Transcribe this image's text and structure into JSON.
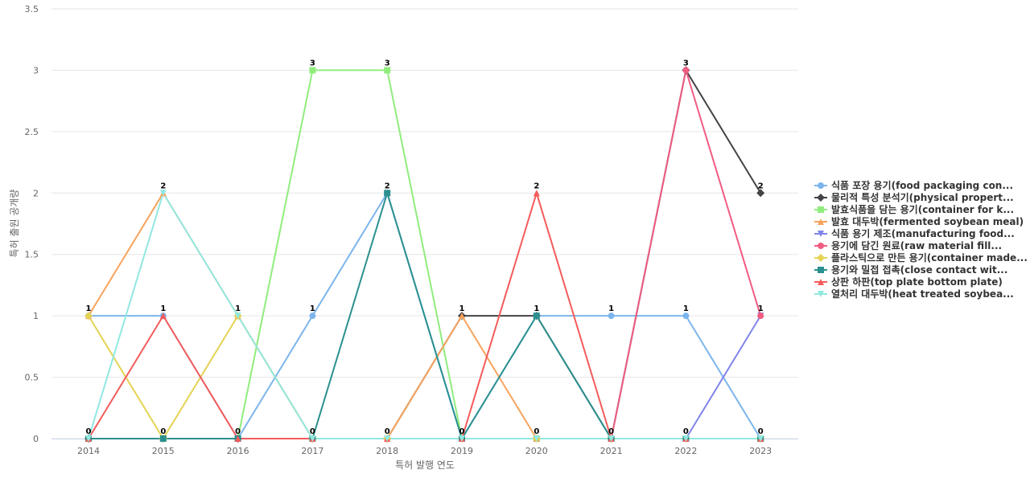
{
  "chart_data": {
    "type": "line",
    "title": "",
    "xlabel": "특허 발행 연도",
    "ylabel": "특허 출원 공개량",
    "x": [
      "2014",
      "2015",
      "2016",
      "2017",
      "2018",
      "2019",
      "2020",
      "2021",
      "2022",
      "2023"
    ],
    "yticks": [
      "0",
      "0.5",
      "1",
      "1.5",
      "2",
      "2.5",
      "3",
      "3.5"
    ],
    "ylim": [
      0,
      3.5
    ],
    "grid": true,
    "legend_position": "right",
    "series": [
      {
        "name": "식품 포장 용기(food packaging con...",
        "color": "#7cb5ec",
        "marker": "circle",
        "values": [
          1,
          1,
          0,
          1,
          2,
          0,
          1,
          1,
          1,
          0
        ]
      },
      {
        "name": "물리적 특성 분석기(physical propert...",
        "color": "#434348",
        "marker": "diamond",
        "values": [
          0,
          0,
          0,
          0,
          0,
          1,
          1,
          0,
          3,
          2
        ]
      },
      {
        "name": "발효식품을 담는 용기(container for k...",
        "color": "#90ed7d",
        "marker": "square",
        "values": [
          0,
          0,
          0,
          3,
          3,
          0,
          0,
          0,
          0,
          0
        ]
      },
      {
        "name": "발효 대두박(fermented soybean meal)",
        "color": "#f7a35c",
        "marker": "triangle",
        "values": [
          1,
          2,
          1,
          0,
          0,
          1,
          0,
          0,
          0,
          0
        ]
      },
      {
        "name": "식품 용기 제조(manufacturing food...",
        "color": "#8085e9",
        "marker": "triangle-down",
        "values": [
          0,
          0,
          0,
          0,
          0,
          0,
          0,
          0,
          0,
          1
        ]
      },
      {
        "name": "용기에 담긴 원료(raw material fill...",
        "color": "#f15c80",
        "marker": "circle",
        "values": [
          0,
          0,
          0,
          0,
          0,
          0,
          0,
          0,
          3,
          1
        ]
      },
      {
        "name": "플라스틱으로 만든 용기(container made...",
        "color": "#e4d354",
        "marker": "diamond",
        "values": [
          1,
          0,
          1,
          0,
          0,
          0,
          0,
          0,
          0,
          0
        ]
      },
      {
        "name": "용기와 밀접 접촉(close contact wit...",
        "color": "#2b908f",
        "marker": "square",
        "values": [
          0,
          0,
          0,
          0,
          2,
          0,
          1,
          0,
          0,
          0
        ]
      },
      {
        "name": "상판 하판(top plate bottom plate)",
        "color": "#f45b5b",
        "marker": "triangle",
        "values": [
          0,
          1,
          0,
          0,
          0,
          0,
          2,
          0,
          0,
          0
        ]
      },
      {
        "name": "열처리 대두박(heat treated soybea...",
        "color": "#91e8e1",
        "marker": "triangle-down",
        "values": [
          0,
          2,
          1,
          0,
          0,
          0,
          0,
          0,
          0,
          0
        ]
      }
    ],
    "data_labels": [
      {
        "x": "2014",
        "top": "1",
        "bottom": "0"
      },
      {
        "x": "2015",
        "top": "2",
        "mid": "1",
        "bottom": "0"
      },
      {
        "x": "2016",
        "top": "1",
        "bottom": "0"
      },
      {
        "x": "2017",
        "top": "3",
        "mid": "1",
        "bottom": "0"
      },
      {
        "x": "2018",
        "top": "3",
        "mid": "2",
        "bottom": "0"
      },
      {
        "x": "2019",
        "top": "1",
        "bottom": "0"
      },
      {
        "x": "2020",
        "top": "2",
        "mid": "1",
        "bottom": "0"
      },
      {
        "x": "2021",
        "top": "1",
        "bottom": "0"
      },
      {
        "x": "2022",
        "top": "3",
        "mid": "1",
        "bottom": "0"
      },
      {
        "x": "2023",
        "top": "2",
        "mid": "1",
        "bottom": "0"
      }
    ]
  }
}
